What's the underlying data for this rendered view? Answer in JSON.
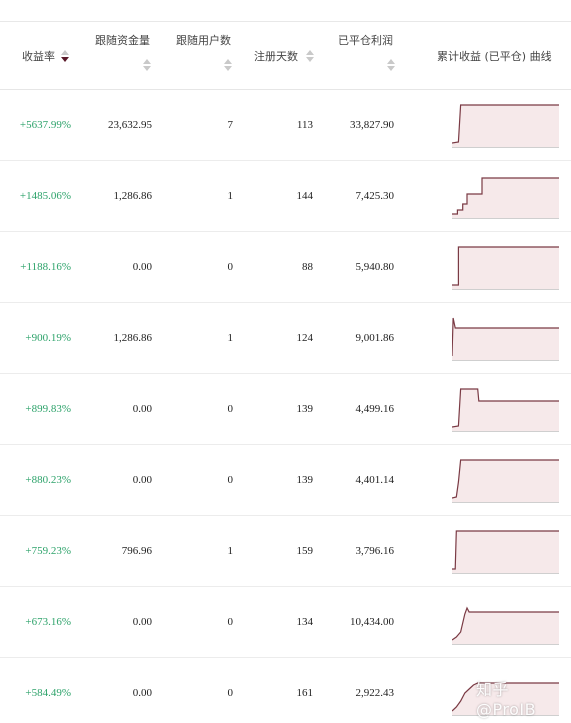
{
  "columns": {
    "rate": "收益率",
    "fund": "跟随资金量",
    "users": "跟随用户数",
    "days": "注册天数",
    "profit": "已平仓利润",
    "curve": "累计收益 (已平仓) 曲线"
  },
  "rows": [
    {
      "rate": "+5637.99%",
      "fund": "23,632.95",
      "users": "7",
      "days": "113",
      "profit": "33,827.90",
      "curve": [
        [
          0,
          2
        ],
        [
          6,
          3
        ],
        [
          8,
          40
        ],
        [
          10,
          40
        ],
        [
          12,
          40
        ],
        [
          100,
          40
        ]
      ]
    },
    {
      "rate": "+1485.06%",
      "fund": "1,286.86",
      "users": "1",
      "days": "144",
      "profit": "7,425.30",
      "curve": [
        [
          0,
          2
        ],
        [
          5,
          2
        ],
        [
          5,
          6
        ],
        [
          10,
          6
        ],
        [
          10,
          12
        ],
        [
          14,
          12
        ],
        [
          14,
          22
        ],
        [
          28,
          22
        ],
        [
          28,
          38
        ],
        [
          100,
          38
        ]
      ]
    },
    {
      "rate": "+1188.16%",
      "fund": "0.00",
      "users": "0",
      "days": "88",
      "profit": "5,940.80",
      "curve": [
        [
          0,
          2
        ],
        [
          6,
          2
        ],
        [
          6,
          40
        ],
        [
          100,
          40
        ]
      ]
    },
    {
      "rate": "+900.19%",
      "fund": "1,286.86",
      "users": "1",
      "days": "124",
      "profit": "9,001.86",
      "curve": [
        [
          0,
          2
        ],
        [
          1,
          40
        ],
        [
          3,
          30
        ],
        [
          100,
          30
        ]
      ]
    },
    {
      "rate": "+899.83%",
      "fund": "0.00",
      "users": "0",
      "days": "139",
      "profit": "4,499.16",
      "curve": [
        [
          0,
          2
        ],
        [
          6,
          3
        ],
        [
          8,
          40
        ],
        [
          24,
          40
        ],
        [
          25,
          28
        ],
        [
          100,
          28
        ]
      ]
    },
    {
      "rate": "+880.23%",
      "fund": "0.00",
      "users": "0",
      "days": "139",
      "profit": "4,401.14",
      "curve": [
        [
          0,
          2
        ],
        [
          4,
          3
        ],
        [
          6,
          18
        ],
        [
          8,
          40
        ],
        [
          100,
          40
        ]
      ]
    },
    {
      "rate": "+759.23%",
      "fund": "796.96",
      "users": "1",
      "days": "159",
      "profit": "3,796.16",
      "curve": [
        [
          0,
          2
        ],
        [
          3,
          2
        ],
        [
          4,
          40
        ],
        [
          100,
          40
        ]
      ]
    },
    {
      "rate": "+673.16%",
      "fund": "0.00",
      "users": "0",
      "days": "134",
      "profit": "10,434.00",
      "curve": [
        [
          0,
          2
        ],
        [
          4,
          5
        ],
        [
          8,
          10
        ],
        [
          12,
          28
        ],
        [
          14,
          34
        ],
        [
          16,
          30
        ],
        [
          100,
          30
        ]
      ]
    },
    {
      "rate": "+584.49%",
      "fund": "0.00",
      "users": "0",
      "days": "161",
      "profit": "2,922.43",
      "curve": [
        [
          0,
          2
        ],
        [
          4,
          6
        ],
        [
          8,
          12
        ],
        [
          12,
          20
        ],
        [
          16,
          24
        ],
        [
          20,
          28
        ],
        [
          24,
          30
        ],
        [
          100,
          30
        ]
      ]
    }
  ],
  "watermark": "知乎 @ProIB",
  "colors": {
    "positive": "#2ea36b",
    "curve_line": "#7a3a44",
    "curve_fill": "#f6e9ea",
    "sort_active": "#5a1a2a"
  }
}
